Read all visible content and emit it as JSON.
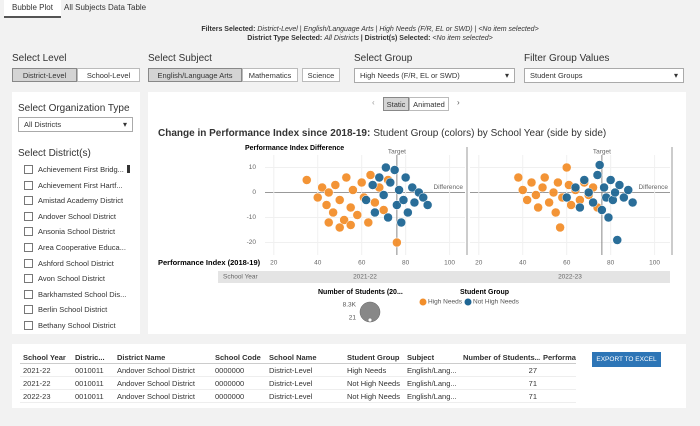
{
  "tabs": [
    "Bubble Plot",
    "All Subjects Data Table"
  ],
  "filters": {
    "line1_label": "Filters Selected:",
    "line1_value": "District-Level | English/Language Arts | High Needs (F/R, EL or SWD) | <No item selected>",
    "line2_label": "District Type Selected:",
    "line2_value": "All Districts",
    "line2_label2": "| District(s) Selected:",
    "line2_value2": "<No item selected>"
  },
  "controls": {
    "level": {
      "label": "Select Level",
      "options": [
        "District-Level",
        "School-Level"
      ],
      "selected": 0
    },
    "subject": {
      "label": "Select Subject",
      "options": [
        "English/Language Arts",
        "Mathematics",
        "Science"
      ],
      "selected": 0
    },
    "group": {
      "label": "Select Group",
      "value": "High Needs (F/R, EL or SWD)"
    },
    "filter_group": {
      "label": "Filter Group Values",
      "value": "Student Groups"
    }
  },
  "sidebar": {
    "org_label": "Select Organization Type",
    "org_value": "All Districts",
    "district_label": "Select District(s)",
    "districts": [
      "Achievement First Bridg...",
      "Achievement First Hartf...",
      "Amistad Academy District",
      "Andover School District",
      "Ansonia School District",
      "Area Cooperative Educa...",
      "Ashford School District",
      "Avon School District",
      "Barkhamsted School Dis...",
      "Berlin School District",
      "Bethany School District"
    ]
  },
  "animation": {
    "options": [
      "Static",
      "Animated"
    ],
    "selected": 0
  },
  "chart_data": {
    "type": "scatter",
    "title": "Change in Performance Index since 2018-19:",
    "subtitle": "Student Group (colors) by School Year (side by side)",
    "y_label": "Performance Index Difference",
    "x_label": "Performance Index (2018-19)",
    "facet_label": "School Year",
    "target_label": "Target",
    "target": 76,
    "zero_label": "Difference",
    "xlim": [
      16,
      107
    ],
    "xticks": [
      20,
      40,
      60,
      80,
      100
    ],
    "ylim": [
      -25,
      15
    ],
    "yticks": [
      10,
      0,
      -10,
      -20
    ],
    "panels": [
      {
        "label": "2021-22",
        "series": [
          {
            "name": "High Needs",
            "color": "#f28e2b",
            "x": [
              35,
              40,
              42,
              44,
              45,
              47,
              48,
              50,
              52,
              53,
              55,
              56,
              58,
              60,
              61,
              63,
              64,
              66,
              68,
              70,
              72,
              76,
              45,
              50,
              55
            ],
            "values": [
              5,
              -2,
              2,
              -5,
              0,
              -8,
              3,
              -3,
              -11,
              6,
              -6,
              1,
              -9,
              4,
              -2,
              -12,
              7,
              -4,
              2,
              -7,
              5,
              -20,
              -12,
              -14,
              -13
            ]
          },
          {
            "name": "Not High Needs",
            "color": "#1f6694",
            "x": [
              62,
              65,
              66,
              68,
              70,
              72,
              73,
              75,
              76,
              77,
              79,
              80,
              81,
              83,
              84,
              86,
              88,
              90,
              78,
              71
            ],
            "values": [
              -3,
              3,
              -8,
              6,
              -1,
              -10,
              4,
              9,
              -5,
              1,
              -3,
              6,
              -8,
              2,
              -4,
              0,
              -2,
              -5,
              -12,
              10
            ]
          }
        ]
      },
      {
        "label": "2022-23",
        "series": [
          {
            "name": "High Needs",
            "color": "#f28e2b",
            "x": [
              40,
              42,
              44,
              46,
              47,
              49,
              50,
              52,
              54,
              55,
              56,
              57,
              58,
              60,
              61,
              62,
              64,
              66,
              68,
              70,
              72,
              74,
              38
            ],
            "values": [
              1,
              -3,
              4,
              -1,
              -6,
              2,
              6,
              -4,
              0,
              -8,
              4,
              -14,
              -2,
              10,
              3,
              -5,
              1,
              -3,
              4,
              -1,
              2,
              -6,
              6
            ]
          },
          {
            "name": "Not High Needs",
            "color": "#1f6694",
            "x": [
              60,
              64,
              66,
              68,
              70,
              72,
              74,
              75,
              76,
              77,
              78,
              80,
              81,
              82,
              83,
              84,
              86,
              88,
              90,
              79
            ],
            "values": [
              -2,
              2,
              -6,
              5,
              0,
              -4,
              7,
              11,
              -7,
              2,
              -2,
              5,
              -3,
              0,
              -19,
              3,
              -2,
              1,
              -4,
              -10
            ]
          }
        ]
      }
    ],
    "size_legend_title": "Number of Students (20...",
    "size_legend": [
      {
        "value": 8300,
        "label": "8.3K"
      },
      21
    ],
    "color_legend_title": "Student Group"
  },
  "table": {
    "headers": [
      "School Year",
      "Distric...",
      "District Name",
      "School Code",
      "School Name",
      "Student Group",
      "Subject",
      "Number of Students...",
      "Performa"
    ],
    "rows": [
      [
        "2021-22",
        "0010011",
        "Andover School District",
        "0000000",
        "District-Level",
        "High Needs",
        "English/Lang...",
        27,
        ""
      ],
      [
        "2021-22",
        "0010011",
        "Andover School District",
        "0000000",
        "District-Level",
        "Not High Needs",
        "English/Lang...",
        71,
        ""
      ],
      [
        "2022-23",
        "0010011",
        "Andover School District",
        "0000000",
        "District-Level",
        "Not High Needs",
        "English/Lang...",
        71,
        ""
      ]
    ]
  },
  "export_button": "EXPORT TO EXCEL"
}
